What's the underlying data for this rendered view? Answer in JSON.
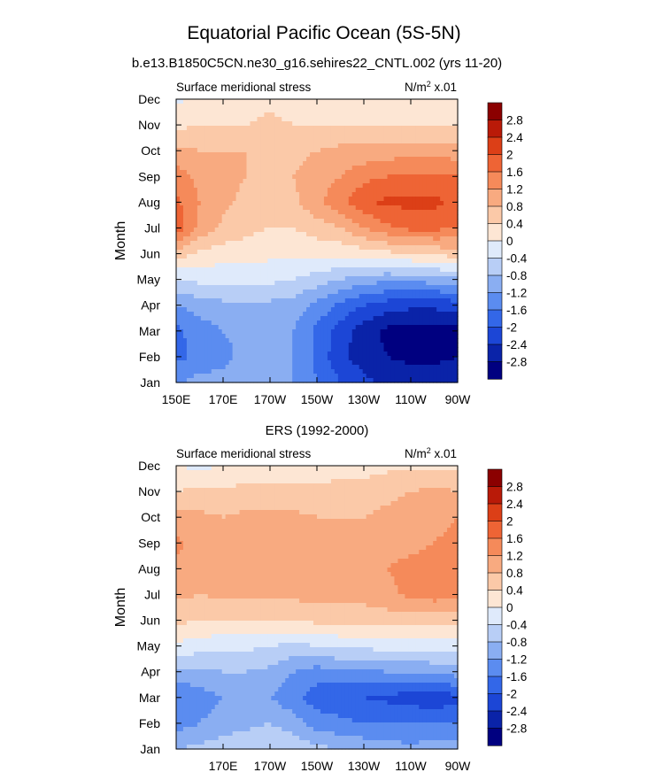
{
  "title": "Equatorial Pacific Ocean (5S-5N)",
  "colors": {
    "levels": [
      "#000080",
      "#0a23a8",
      "#1c46d6",
      "#3367e8",
      "#5b8cf0",
      "#8aaef2",
      "#b8cef6",
      "#dfeafb",
      "#fde6d4",
      "#fbc9a8",
      "#f8aa80",
      "#f58a5a",
      "#ee6435",
      "#dc3f17",
      "#b91a08",
      "#8b0000"
    ]
  },
  "chart_data": [
    {
      "type": "heatmap",
      "title": "b.e13.B1850C5CN.ne30_g16.sehires22_CNTL.002 (yrs 11-20)",
      "left_label": "Surface meridional stress",
      "units_label": "N/m",
      "units_sup": "2",
      "units_suffix": " x.01",
      "ylabel": "Month",
      "xlabel": "",
      "x_ticks": [
        "150E",
        "170E",
        "170W",
        "150W",
        "130W",
        "110W",
        "90W"
      ],
      "y_ticks": [
        "Jan",
        "Feb",
        "Mar",
        "Apr",
        "May",
        "Jun",
        "Jul",
        "Aug",
        "Sep",
        "Oct",
        "Nov",
        "Dec"
      ],
      "x_centers": [
        150,
        160,
        170,
        180,
        190,
        200,
        210,
        220,
        230,
        240,
        250,
        260,
        270
      ],
      "y_centers": [
        1,
        2,
        3,
        4,
        5,
        6,
        7,
        8,
        9,
        10,
        11,
        12
      ],
      "z": [
        [
          -1.3,
          -1.0,
          -1.1,
          -1.0,
          -0.9,
          -1.2,
          -1.6,
          -2.0,
          -2.3,
          -2.5,
          -2.6,
          -2.6,
          -2.5
        ],
        [
          -1.7,
          -1.5,
          -1.3,
          -1.1,
          -1.0,
          -1.2,
          -1.7,
          -2.3,
          -2.6,
          -2.8,
          -2.9,
          -2.9,
          -2.8
        ],
        [
          -1.7,
          -1.4,
          -1.2,
          -1.1,
          -1.0,
          -1.2,
          -1.7,
          -2.2,
          -2.6,
          -2.9,
          -3.0,
          -3.0,
          -2.9
        ],
        [
          -1.2,
          -1.0,
          -0.9,
          -0.9,
          -0.9,
          -1.0,
          -1.3,
          -1.7,
          -2.0,
          -2.2,
          -2.3,
          -2.3,
          -2.2
        ],
        [
          -0.4,
          -0.3,
          -0.3,
          -0.3,
          -0.3,
          -0.4,
          -0.6,
          -0.8,
          -1.0,
          -1.1,
          -1.1,
          -1.0,
          -0.9
        ],
        [
          0.6,
          0.3,
          0.2,
          0.2,
          0.1,
          0.1,
          0.1,
          0.1,
          0.2,
          0.3,
          0.4,
          0.5,
          0.6
        ],
        [
          1.9,
          1.1,
          0.7,
          0.5,
          0.4,
          0.4,
          0.6,
          0.8,
          1.2,
          1.5,
          1.7,
          1.7,
          1.6
        ],
        [
          1.7,
          1.2,
          0.9,
          0.7,
          0.6,
          0.7,
          1.1,
          1.5,
          1.9,
          2.1,
          2.1,
          2.1,
          1.9
        ],
        [
          1.4,
          1.1,
          0.9,
          0.8,
          0.7,
          0.8,
          1.0,
          1.2,
          1.5,
          1.6,
          1.7,
          1.7,
          1.6
        ],
        [
          0.9,
          0.8,
          0.8,
          0.8,
          0.7,
          0.7,
          0.8,
          0.9,
          0.9,
          1.0,
          1.0,
          1.0,
          1.0
        ],
        [
          0.3,
          0.4,
          0.4,
          0.4,
          0.5,
          0.4,
          0.4,
          0.4,
          0.4,
          0.4,
          0.4,
          0.4,
          0.4
        ],
        [
          -0.1,
          0.1,
          0.2,
          0.2,
          0.3,
          0.2,
          0.2,
          0.2,
          0.1,
          0.1,
          0.1,
          0.1,
          0.1
        ]
      ],
      "colorbar_labels": [
        "2.8",
        "2.4",
        "2",
        "1.6",
        "1.2",
        "0.8",
        "0.4",
        "0",
        "-0.4",
        "-0.8",
        "-1.2",
        "-1.6",
        "-2",
        "-2.4",
        "-2.8"
      ],
      "levels": [
        -2.8,
        -2.4,
        -2.0,
        -1.6,
        -1.2,
        -0.8,
        -0.4,
        0,
        0.4,
        0.8,
        1.2,
        1.6,
        2.0,
        2.4,
        2.8
      ]
    },
    {
      "type": "heatmap",
      "title": "ERS (1992-2000)",
      "left_label": "Surface meridional stress",
      "units_label": "N/m",
      "units_sup": "2",
      "units_suffix": " x.01",
      "ylabel": "Month",
      "xlabel": "",
      "x_ticks": [
        "170E",
        "170W",
        "150W",
        "130W",
        "110W",
        "90W"
      ],
      "y_ticks": [
        "Jan",
        "Feb",
        "Mar",
        "Apr",
        "May",
        "Jun",
        "Jul",
        "Aug",
        "Sep",
        "Oct",
        "Nov",
        "Dec"
      ],
      "x_centers": [
        150,
        160,
        170,
        180,
        190,
        200,
        210,
        220,
        230,
        240,
        250,
        260,
        270
      ],
      "y_centers": [
        1,
        2,
        3,
        4,
        5,
        6,
        7,
        8,
        9,
        10,
        11,
        12
      ],
      "z": [
        [
          -0.8,
          -0.7,
          -0.6,
          -0.5,
          -0.4,
          -0.5,
          -0.7,
          -0.8,
          -0.9,
          -1.0,
          -1.1,
          -1.0,
          -1.0
        ],
        [
          -1.4,
          -1.2,
          -1.0,
          -0.9,
          -0.8,
          -1.0,
          -1.4,
          -1.5,
          -1.6,
          -1.6,
          -1.6,
          -1.6,
          -1.6
        ],
        [
          -1.6,
          -1.4,
          -1.2,
          -1.1,
          -1.2,
          -1.5,
          -1.8,
          -1.9,
          -2.0,
          -2.1,
          -2.2,
          -2.3,
          -2.1
        ],
        [
          -0.9,
          -0.9,
          -0.8,
          -0.8,
          -0.9,
          -1.2,
          -1.4,
          -1.3,
          -1.3,
          -1.2,
          -1.2,
          -1.1,
          -1.0
        ],
        [
          -0.1,
          -0.2,
          -0.3,
          -0.3,
          -0.4,
          -0.5,
          -0.4,
          -0.3,
          -0.3,
          -0.2,
          -0.2,
          -0.2,
          -0.2
        ],
        [
          0.5,
          0.4,
          0.4,
          0.4,
          0.4,
          0.4,
          0.5,
          0.5,
          0.5,
          0.6,
          0.6,
          0.6,
          0.6
        ],
        [
          0.9,
          0.8,
          0.9,
          0.9,
          0.9,
          0.9,
          1.0,
          1.0,
          1.0,
          1.1,
          1.3,
          1.4,
          1.3
        ],
        [
          1.1,
          0.9,
          1.0,
          1.1,
          1.1,
          1.1,
          1.1,
          1.1,
          1.1,
          1.2,
          1.3,
          1.4,
          1.3
        ],
        [
          1.3,
          1.0,
          1.0,
          1.0,
          1.1,
          1.1,
          1.0,
          1.0,
          1.0,
          1.1,
          1.1,
          1.2,
          1.3
        ],
        [
          0.9,
          0.9,
          0.8,
          0.9,
          0.9,
          0.9,
          0.8,
          0.8,
          0.8,
          0.9,
          1.0,
          1.1,
          1.2
        ],
        [
          0.4,
          0.5,
          0.5,
          0.5,
          0.5,
          0.5,
          0.5,
          0.6,
          0.6,
          0.7,
          0.8,
          0.9,
          0.8
        ],
        [
          0.0,
          -0.1,
          0.0,
          0.1,
          0.1,
          0.1,
          0.1,
          0.2,
          0.2,
          0.3,
          0.3,
          0.3,
          0.3
        ]
      ],
      "colorbar_labels": [
        "2.8",
        "2.4",
        "2",
        "1.6",
        "1.2",
        "0.8",
        "0.4",
        "0",
        "-0.4",
        "-0.8",
        "-1.2",
        "-1.6",
        "-2",
        "-2.4",
        "-2.8"
      ],
      "levels": [
        -2.8,
        -2.4,
        -2.0,
        -1.6,
        -1.2,
        -0.8,
        -0.4,
        0,
        0.4,
        0.8,
        1.2,
        1.6,
        2.0,
        2.4,
        2.8
      ]
    }
  ]
}
